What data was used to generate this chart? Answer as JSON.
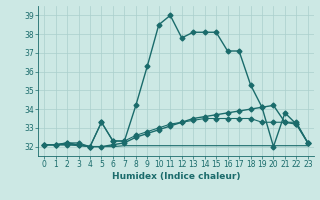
{
  "xlabel": "Humidex (Indice chaleur)",
  "background_color": "#cce8e4",
  "grid_color": "#aacfcc",
  "line_color": "#1a6b6b",
  "xlim": [
    -0.5,
    23.5
  ],
  "ylim": [
    31.5,
    39.5
  ],
  "yticks": [
    32,
    33,
    34,
    35,
    36,
    37,
    38,
    39
  ],
  "xticks": [
    0,
    1,
    2,
    3,
    4,
    5,
    6,
    7,
    8,
    9,
    10,
    11,
    12,
    13,
    14,
    15,
    16,
    17,
    18,
    19,
    20,
    21,
    22,
    23
  ],
  "series": [
    {
      "x": [
        0,
        1,
        2,
        3,
        4,
        5,
        6,
        7,
        8,
        9,
        10,
        11,
        12,
        13,
        14,
        15,
        16,
        17,
        18,
        19,
        20,
        21,
        22,
        23
      ],
      "y": [
        32.1,
        32.1,
        32.2,
        32.1,
        32.0,
        33.3,
        32.3,
        32.3,
        34.2,
        36.3,
        38.5,
        39.0,
        37.8,
        38.1,
        38.1,
        38.1,
        37.1,
        37.1,
        35.3,
        34.1,
        32.0,
        33.8,
        33.2,
        32.2
      ],
      "marker": "D",
      "markersize": 2.5,
      "linewidth": 1.0
    },
    {
      "x": [
        0,
        1,
        2,
        3,
        4,
        5,
        6,
        7,
        8,
        9,
        10,
        11,
        12,
        13,
        14,
        15,
        16,
        17,
        18,
        19,
        20,
        21,
        22,
        23
      ],
      "y": [
        32.1,
        32.1,
        32.1,
        32.1,
        32.0,
        32.0,
        32.1,
        32.2,
        32.5,
        32.7,
        32.9,
        33.1,
        33.3,
        33.5,
        33.6,
        33.7,
        33.8,
        33.9,
        34.0,
        34.1,
        34.2,
        33.3,
        33.2,
        32.2
      ],
      "marker": "D",
      "markersize": 2.5,
      "linewidth": 1.0
    },
    {
      "x": [
        0,
        1,
        2,
        3,
        4,
        5,
        6,
        7,
        8,
        9,
        10,
        11,
        12,
        13,
        14,
        15,
        16,
        17,
        18,
        19,
        20,
        21,
        22,
        23
      ],
      "y": [
        32.1,
        32.1,
        32.1,
        32.05,
        32.0,
        32.0,
        32.0,
        32.05,
        32.05,
        32.05,
        32.05,
        32.05,
        32.05,
        32.05,
        32.05,
        32.05,
        32.05,
        32.05,
        32.05,
        32.05,
        32.05,
        32.05,
        32.05,
        32.05
      ],
      "marker": null,
      "markersize": 0,
      "linewidth": 0.8
    },
    {
      "x": [
        0,
        1,
        2,
        3,
        4,
        5,
        6,
        7,
        8,
        9,
        10,
        11,
        12,
        13,
        14,
        15,
        16,
        17,
        18,
        19,
        20,
        21,
        22,
        23
      ],
      "y": [
        32.1,
        32.1,
        32.2,
        32.2,
        32.0,
        33.3,
        32.3,
        32.3,
        32.6,
        32.8,
        33.0,
        33.2,
        33.3,
        33.4,
        33.5,
        33.5,
        33.5,
        33.5,
        33.5,
        33.3,
        33.3,
        33.3,
        33.3,
        32.2
      ],
      "marker": "D",
      "markersize": 2.5,
      "linewidth": 0.8
    }
  ]
}
